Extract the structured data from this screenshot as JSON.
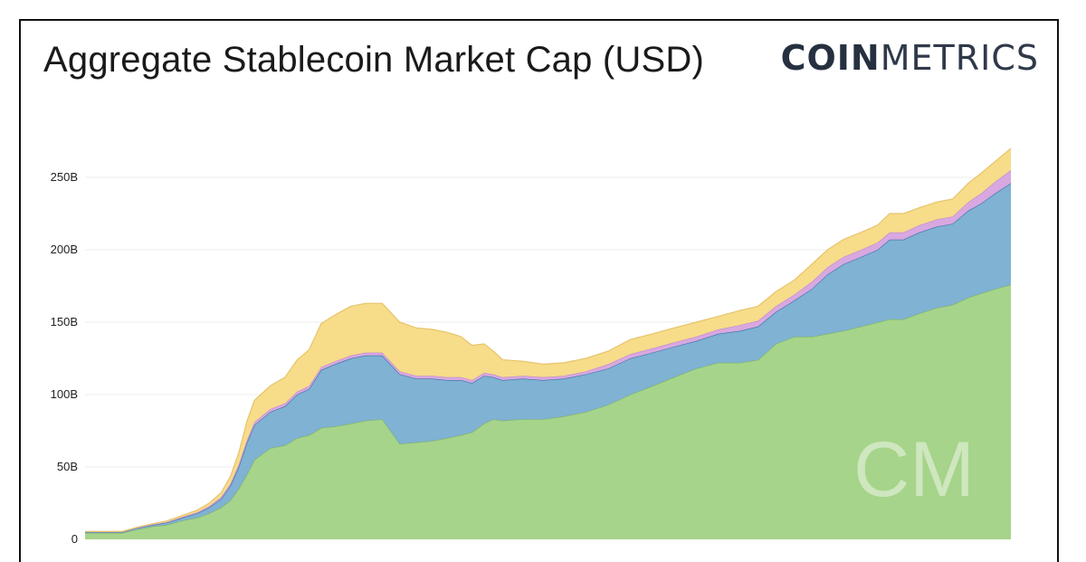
{
  "title": "Aggregate Stablecoin Market Cap (USD)",
  "brand": {
    "part1": "COIN",
    "part2": "METRICS"
  },
  "watermark": "CM",
  "chart_data": {
    "type": "area",
    "stacked": true,
    "title": "Aggregate Stablecoin Market Cap (USD)",
    "xlabel": "",
    "ylabel": "",
    "ylim": [
      0,
      282
    ],
    "y_unit": "B",
    "yticks": [
      0,
      50,
      100,
      150,
      200,
      250
    ],
    "ytick_labels": [
      "0",
      "50B",
      "100B",
      "150B",
      "200B",
      "250B"
    ],
    "grid": true,
    "legend": "none",
    "colors": [
      "#a6d48a",
      "#7fb2d3",
      "#d8a8e0",
      "#f7dc8a"
    ],
    "x": [
      0,
      2.4,
      4,
      5.7,
      7.3,
      8.8,
      10.5,
      12.1,
      13.4,
      14.7,
      15.7,
      16.6,
      17.5,
      18.3,
      20,
      21.6,
      22.9,
      24.2,
      25.5,
      27,
      28.7,
      30.3,
      32.1,
      34,
      35.8,
      37.5,
      39.1,
      40.6,
      41.8,
      43.1,
      44.1,
      45.1,
      47.3,
      49.5,
      51.7,
      54.1,
      56.5,
      58.9,
      61.3,
      63.6,
      66,
      68.4,
      70.7,
      72.7,
      74.6,
      76.6,
      78.5,
      80.2,
      81.9,
      83.8,
      85.6,
      86.9,
      88.4,
      90.1,
      92,
      93.7,
      95.4,
      96.8,
      98.3,
      100
    ],
    "series": [
      {
        "values": [
          4.5,
          4.5,
          4.5,
          7,
          9,
          10,
          13,
          15,
          18,
          22,
          27,
          35,
          45,
          55,
          63,
          65,
          70,
          72,
          77,
          78,
          80,
          82,
          83,
          66,
          67,
          68,
          70,
          72,
          74,
          80,
          83,
          82,
          83,
          83,
          85,
          88,
          93,
          100,
          106,
          112,
          118,
          122,
          122,
          124,
          135,
          140,
          140,
          142,
          144,
          147,
          150,
          152,
          152,
          156,
          160,
          162,
          167,
          170,
          173,
          176
        ]
      },
      {
        "values": [
          0.5,
          0.5,
          0.5,
          1,
          1,
          1.5,
          2,
          3,
          4,
          6,
          10,
          15,
          22,
          24,
          25,
          27,
          30,
          32,
          40,
          43,
          45,
          45,
          44,
          48,
          44,
          43,
          40,
          38,
          34,
          33,
          29,
          28,
          28,
          27,
          26,
          26,
          25,
          25,
          23,
          21,
          19,
          20,
          22,
          23,
          22,
          25,
          33,
          41,
          46,
          48,
          50,
          55,
          55,
          56,
          56,
          56,
          60,
          62,
          66,
          70
        ]
      },
      {
        "values": [
          0.2,
          0.2,
          0.2,
          0.2,
          0.3,
          0.4,
          0.5,
          0.7,
          1,
          1.3,
          1.5,
          1.7,
          1.8,
          2,
          2,
          2,
          2,
          2,
          2,
          2,
          2,
          2,
          2,
          2,
          2,
          2,
          2,
          2,
          2,
          2,
          2,
          2,
          2,
          2,
          2,
          2,
          3,
          3,
          3,
          3,
          3,
          3,
          4,
          4,
          4,
          4,
          5,
          5,
          5,
          5,
          5,
          5,
          5,
          5,
          5,
          5,
          6,
          7,
          8,
          9
        ]
      },
      {
        "values": [
          0.3,
          0.3,
          0.3,
          0.3,
          0.5,
          0.8,
          1,
          1.5,
          2,
          3,
          5,
          8,
          13,
          15,
          16,
          18,
          22,
          25,
          30,
          32,
          34,
          34,
          34,
          34,
          33,
          32,
          31,
          28,
          24,
          20,
          16,
          12,
          10,
          9,
          9,
          9,
          9,
          10,
          10,
          10,
          10,
          9,
          10,
          10,
          10,
          10,
          12,
          12,
          12,
          12,
          12,
          13,
          13,
          12,
          12,
          12,
          13,
          14,
          14,
          15
        ]
      }
    ]
  }
}
